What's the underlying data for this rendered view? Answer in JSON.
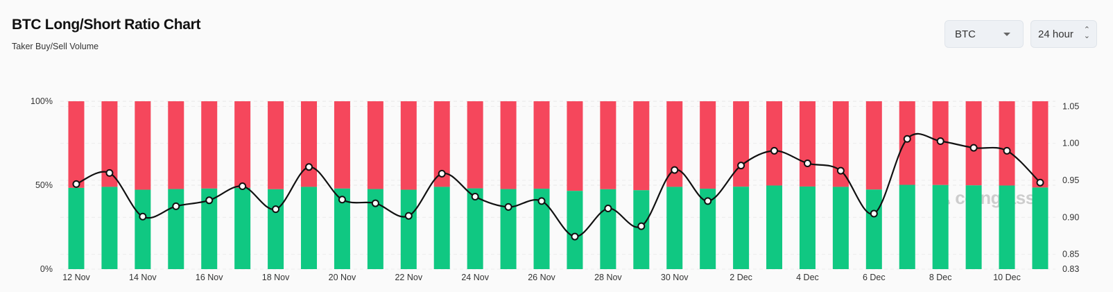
{
  "header": {
    "title": "BTC Long/Short Ratio Chart",
    "subtitle": "Taker Buy/Sell Volume"
  },
  "controls": {
    "symbol": "BTC",
    "interval": "24 hour"
  },
  "watermark": "coinglass",
  "colors": {
    "long": "#10c882",
    "short": "#f5475c",
    "ratio_line": "#111111"
  },
  "chart_data": {
    "type": "bar",
    "stacked": true,
    "categories": [
      "12 Nov",
      "13 Nov",
      "14 Nov",
      "15 Nov",
      "16 Nov",
      "17 Nov",
      "18 Nov",
      "19 Nov",
      "20 Nov",
      "21 Nov",
      "22 Nov",
      "23 Nov",
      "24 Nov",
      "25 Nov",
      "26 Nov",
      "27 Nov",
      "28 Nov",
      "29 Nov",
      "30 Nov",
      "1 Dec",
      "2 Dec",
      "3 Dec",
      "4 Dec",
      "5 Dec",
      "6 Dec",
      "7 Dec",
      "8 Dec",
      "9 Dec",
      "10 Dec",
      "11 Dec"
    ],
    "x_tick_labels": [
      "12 Nov",
      "14 Nov",
      "16 Nov",
      "18 Nov",
      "20 Nov",
      "22 Nov",
      "24 Nov",
      "26 Nov",
      "28 Nov",
      "30 Nov",
      "2 Dec",
      "4 Dec",
      "6 Dec",
      "8 Dec",
      "10 Dec"
    ],
    "series": [
      {
        "type": "bar",
        "axis": "left",
        "color": "#10c882",
        "values": [
          48.4,
          49.0,
          47.3,
          47.7,
          48.0,
          48.4,
          47.6,
          49.0,
          48.0,
          47.7,
          47.3,
          49.0,
          48.1,
          47.7,
          47.9,
          46.6,
          47.6,
          47.0,
          49.0,
          47.9,
          49.1,
          49.8,
          49.2,
          49.0,
          47.4,
          50.2,
          50.1,
          49.9,
          49.8,
          48.6
        ]
      },
      {
        "type": "bar",
        "axis": "left",
        "color": "#f5475c",
        "values": [
          51.6,
          51.0,
          52.7,
          52.3,
          52.0,
          51.6,
          52.4,
          51.0,
          52.0,
          52.3,
          52.7,
          51.0,
          51.9,
          52.3,
          52.1,
          53.4,
          52.4,
          53.0,
          51.0,
          52.1,
          50.9,
          50.2,
          50.8,
          51.0,
          52.6,
          49.8,
          49.9,
          50.1,
          50.2,
          51.4
        ]
      },
      {
        "type": "line",
        "axis": "right",
        "color": "#111111",
        "values": [
          0.945,
          0.96,
          0.901,
          0.915,
          0.923,
          0.942,
          0.911,
          0.968,
          0.924,
          0.919,
          0.902,
          0.959,
          0.928,
          0.914,
          0.922,
          0.874,
          0.912,
          0.888,
          0.964,
          0.922,
          0.97,
          0.99,
          0.973,
          0.963,
          0.905,
          1.006,
          1.003,
          0.994,
          0.99,
          0.947
        ]
      }
    ],
    "left_axis": {
      "ticks": [
        "100%",
        "50%",
        "0%"
      ],
      "range": [
        0,
        100
      ]
    },
    "right_axis": {
      "ticks": [
        "1.05",
        "1.00",
        "0.95",
        "0.90",
        "0.85",
        "0.83"
      ],
      "range": [
        0.83,
        1.057
      ]
    },
    "grid": true
  }
}
